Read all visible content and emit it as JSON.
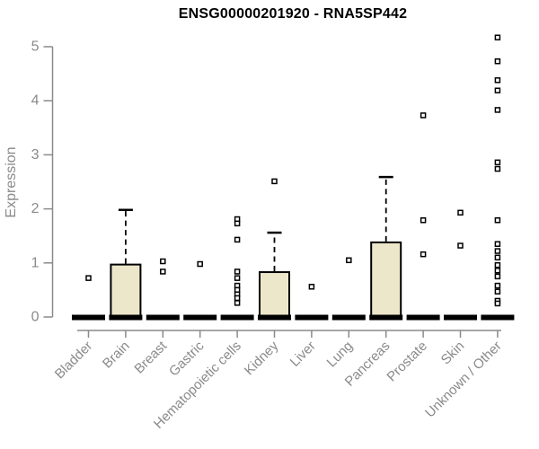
{
  "chart_data": {
    "type": "box",
    "title": "ENSG00000201920 - RNA5SP442",
    "ylabel": "Expression",
    "xlabel": "",
    "ylim": [
      0,
      5
    ],
    "yticks": [
      0,
      1,
      2,
      3,
      4,
      5
    ],
    "grid": false,
    "legend": "none",
    "colors": {
      "box_fill": "#ece7cb",
      "box_border": "#000000",
      "median": "#000000",
      "axis": "#8a8a8a",
      "tick_text": "#8a8a8a",
      "outlier_fill": "#ffffff",
      "background": "#ffffff"
    },
    "categories": [
      "Bladder",
      "Brain",
      "Breast",
      "Gastric",
      "Hematopoietic cells",
      "Kidney",
      "Liver",
      "Lung",
      "Pancreas",
      "Prostate",
      "Skin",
      "Unknown / Other"
    ],
    "boxes": [
      {
        "label": "Bladder",
        "low": 0,
        "q1": 0,
        "median": 0,
        "q3": 0,
        "high": 0,
        "outliers": [
          0.72
        ]
      },
      {
        "label": "Brain",
        "low": 0,
        "q1": 0,
        "median": 0,
        "q3": 0.97,
        "high": 1.98,
        "outliers": []
      },
      {
        "label": "Breast",
        "low": 0,
        "q1": 0,
        "median": 0,
        "q3": 0,
        "high": 0,
        "outliers": [
          1.03,
          0.84
        ]
      },
      {
        "label": "Gastric",
        "low": 0,
        "q1": 0,
        "median": 0,
        "q3": 0,
        "high": 0,
        "outliers": [
          0.98
        ]
      },
      {
        "label": "Hematopoietic cells",
        "low": 0,
        "q1": 0,
        "median": 0,
        "q3": 0,
        "high": 0,
        "outliers": [
          1.81,
          1.73,
          1.43,
          0.84,
          0.72,
          0.58,
          0.5,
          0.42,
          0.35,
          0.26
        ]
      },
      {
        "label": "Kidney",
        "low": 0,
        "q1": 0,
        "median": 0,
        "q3": 0.83,
        "high": 1.56,
        "outliers": [
          2.51
        ]
      },
      {
        "label": "Liver",
        "low": 0,
        "q1": 0,
        "median": 0,
        "q3": 0,
        "high": 0,
        "outliers": [
          0.56
        ]
      },
      {
        "label": "Lung",
        "low": 0,
        "q1": 0,
        "median": 0,
        "q3": 0,
        "high": 0,
        "outliers": [
          1.05
        ]
      },
      {
        "label": "Pancreas",
        "low": 0,
        "q1": 0,
        "median": 0,
        "q3": 1.38,
        "high": 2.59,
        "outliers": []
      },
      {
        "label": "Prostate",
        "low": 0,
        "q1": 0,
        "median": 0,
        "q3": 0,
        "high": 0,
        "outliers": [
          3.73,
          1.79,
          1.16
        ]
      },
      {
        "label": "Skin",
        "low": 0,
        "q1": 0,
        "median": 0,
        "q3": 0,
        "high": 0,
        "outliers": [
          1.93,
          1.32
        ]
      },
      {
        "label": "Unknown / Other",
        "low": 0,
        "q1": 0,
        "median": 0,
        "q3": 0,
        "high": 0,
        "outliers": [
          5.17,
          4.73,
          4.38,
          4.19,
          3.83,
          2.86,
          2.74,
          1.79,
          1.35,
          1.22,
          1.1,
          0.96,
          0.86,
          0.75,
          0.58,
          0.47,
          0.3,
          0.25
        ]
      }
    ]
  }
}
